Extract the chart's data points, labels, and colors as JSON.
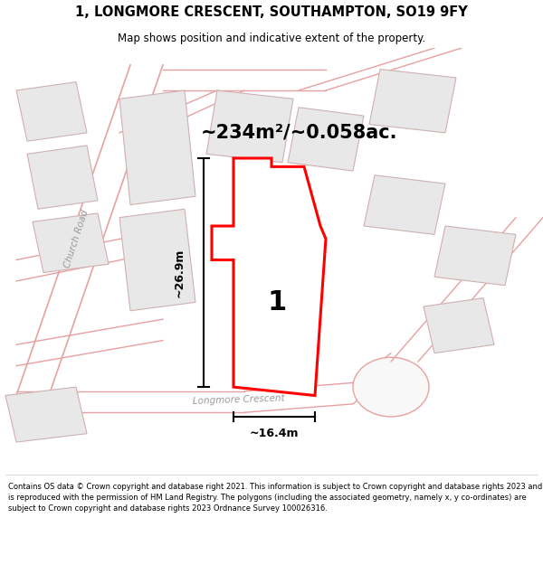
{
  "title": "1, LONGMORE CRESCENT, SOUTHAMPTON, SO19 9FY",
  "subtitle": "Map shows position and indicative extent of the property.",
  "footer": "Contains OS data © Crown copyright and database right 2021. This information is subject to Crown copyright and database rights 2023 and is reproduced with the permission of HM Land Registry. The polygons (including the associated geometry, namely x, y co-ordinates) are subject to Crown copyright and database rights 2023 Ordnance Survey 100026316.",
  "area_label": "~234m²/~0.058ac.",
  "width_label": "~16.4m",
  "height_label": "~26.9m",
  "property_number": "1",
  "road_label_1": "Church Road",
  "road_label_2": "Longmore Crescent",
  "map_bg": "#ffffff",
  "road_fill_color": "#f5f5f5",
  "road_edge_color": "#e8b0b0",
  "building_fill": "#e8e8e8",
  "building_edge": "#d0b0b0",
  "property_outline_color": "#ff0000",
  "property_fill": "#ffffff",
  "dim_line_color": "#000000",
  "road_line_color": "#e8a0a0"
}
